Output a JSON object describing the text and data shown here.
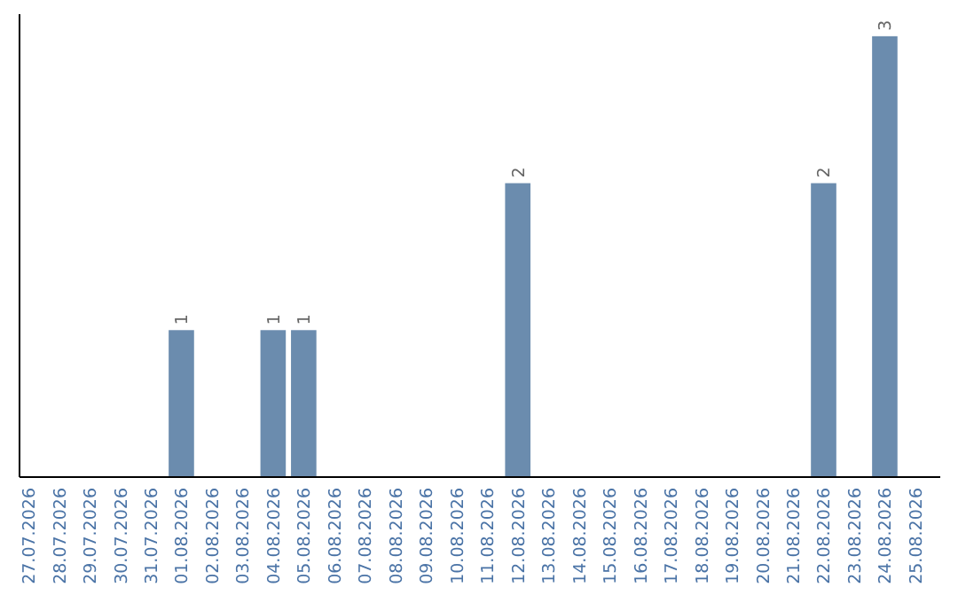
{
  "chart_data": {
    "type": "bar",
    "categories": [
      "27.07.2026",
      "28.07.2026",
      "29.07.2026",
      "30.07.2026",
      "31.07.2026",
      "01.08.2026",
      "02.08.2026",
      "03.08.2026",
      "04.08.2026",
      "05.08.2026",
      "06.08.2026",
      "07.08.2026",
      "08.08.2026",
      "09.08.2026",
      "10.08.2026",
      "11.08.2026",
      "12.08.2026",
      "13.08.2026",
      "14.08.2026",
      "15.08.2026",
      "16.08.2026",
      "17.08.2026",
      "18.08.2026",
      "19.08.2026",
      "20.08.2026",
      "21.08.2026",
      "22.08.2026",
      "23.08.2026",
      "24.08.2026",
      "25.08.2026"
    ],
    "values": [
      0,
      0,
      0,
      0,
      0,
      1,
      0,
      0,
      1,
      1,
      0,
      0,
      0,
      0,
      0,
      0,
      2,
      0,
      0,
      0,
      0,
      0,
      0,
      0,
      0,
      0,
      2,
      0,
      3,
      0
    ],
    "value_labels": [
      null,
      null,
      null,
      null,
      null,
      "1",
      null,
      null,
      "1",
      "1",
      null,
      null,
      null,
      null,
      null,
      null,
      "2",
      null,
      null,
      null,
      null,
      null,
      null,
      null,
      null,
      null,
      "2",
      null,
      "3",
      null
    ],
    "color": "#6b8cae"
  }
}
